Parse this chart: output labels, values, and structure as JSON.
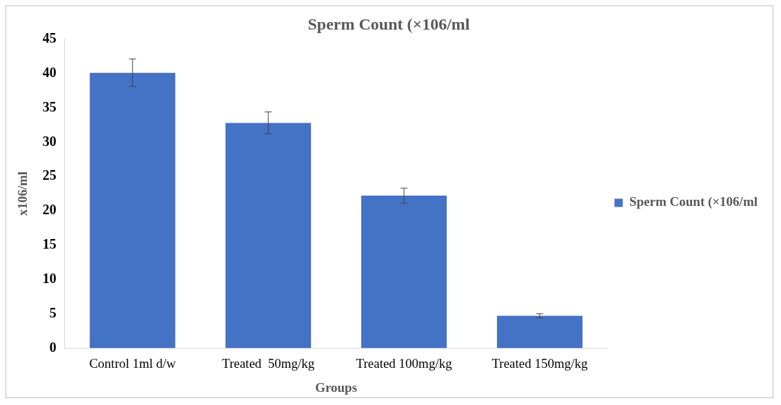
{
  "chart_data": {
    "type": "bar",
    "title": "Sperm Count (×106/ml",
    "xlabel": "Groups",
    "ylabel": "x106/ml",
    "categories": [
      "Control 1ml d/w",
      "Treated  50mg/kg",
      "Treated 100mg/kg",
      "Treated 150mg/kg"
    ],
    "series": [
      {
        "name": "Sperm Count (×106/ml",
        "color": "#4472c4",
        "values": [
          40.1,
          32.8,
          22.2,
          4.7
        ],
        "errors": [
          2,
          1.6,
          1.1,
          0.3
        ]
      }
    ],
    "ylim": [
      0,
      45
    ],
    "yticks": [
      0,
      5,
      10,
      15,
      20,
      25,
      30,
      35,
      40,
      45
    ],
    "grid": false,
    "legend": "right"
  }
}
